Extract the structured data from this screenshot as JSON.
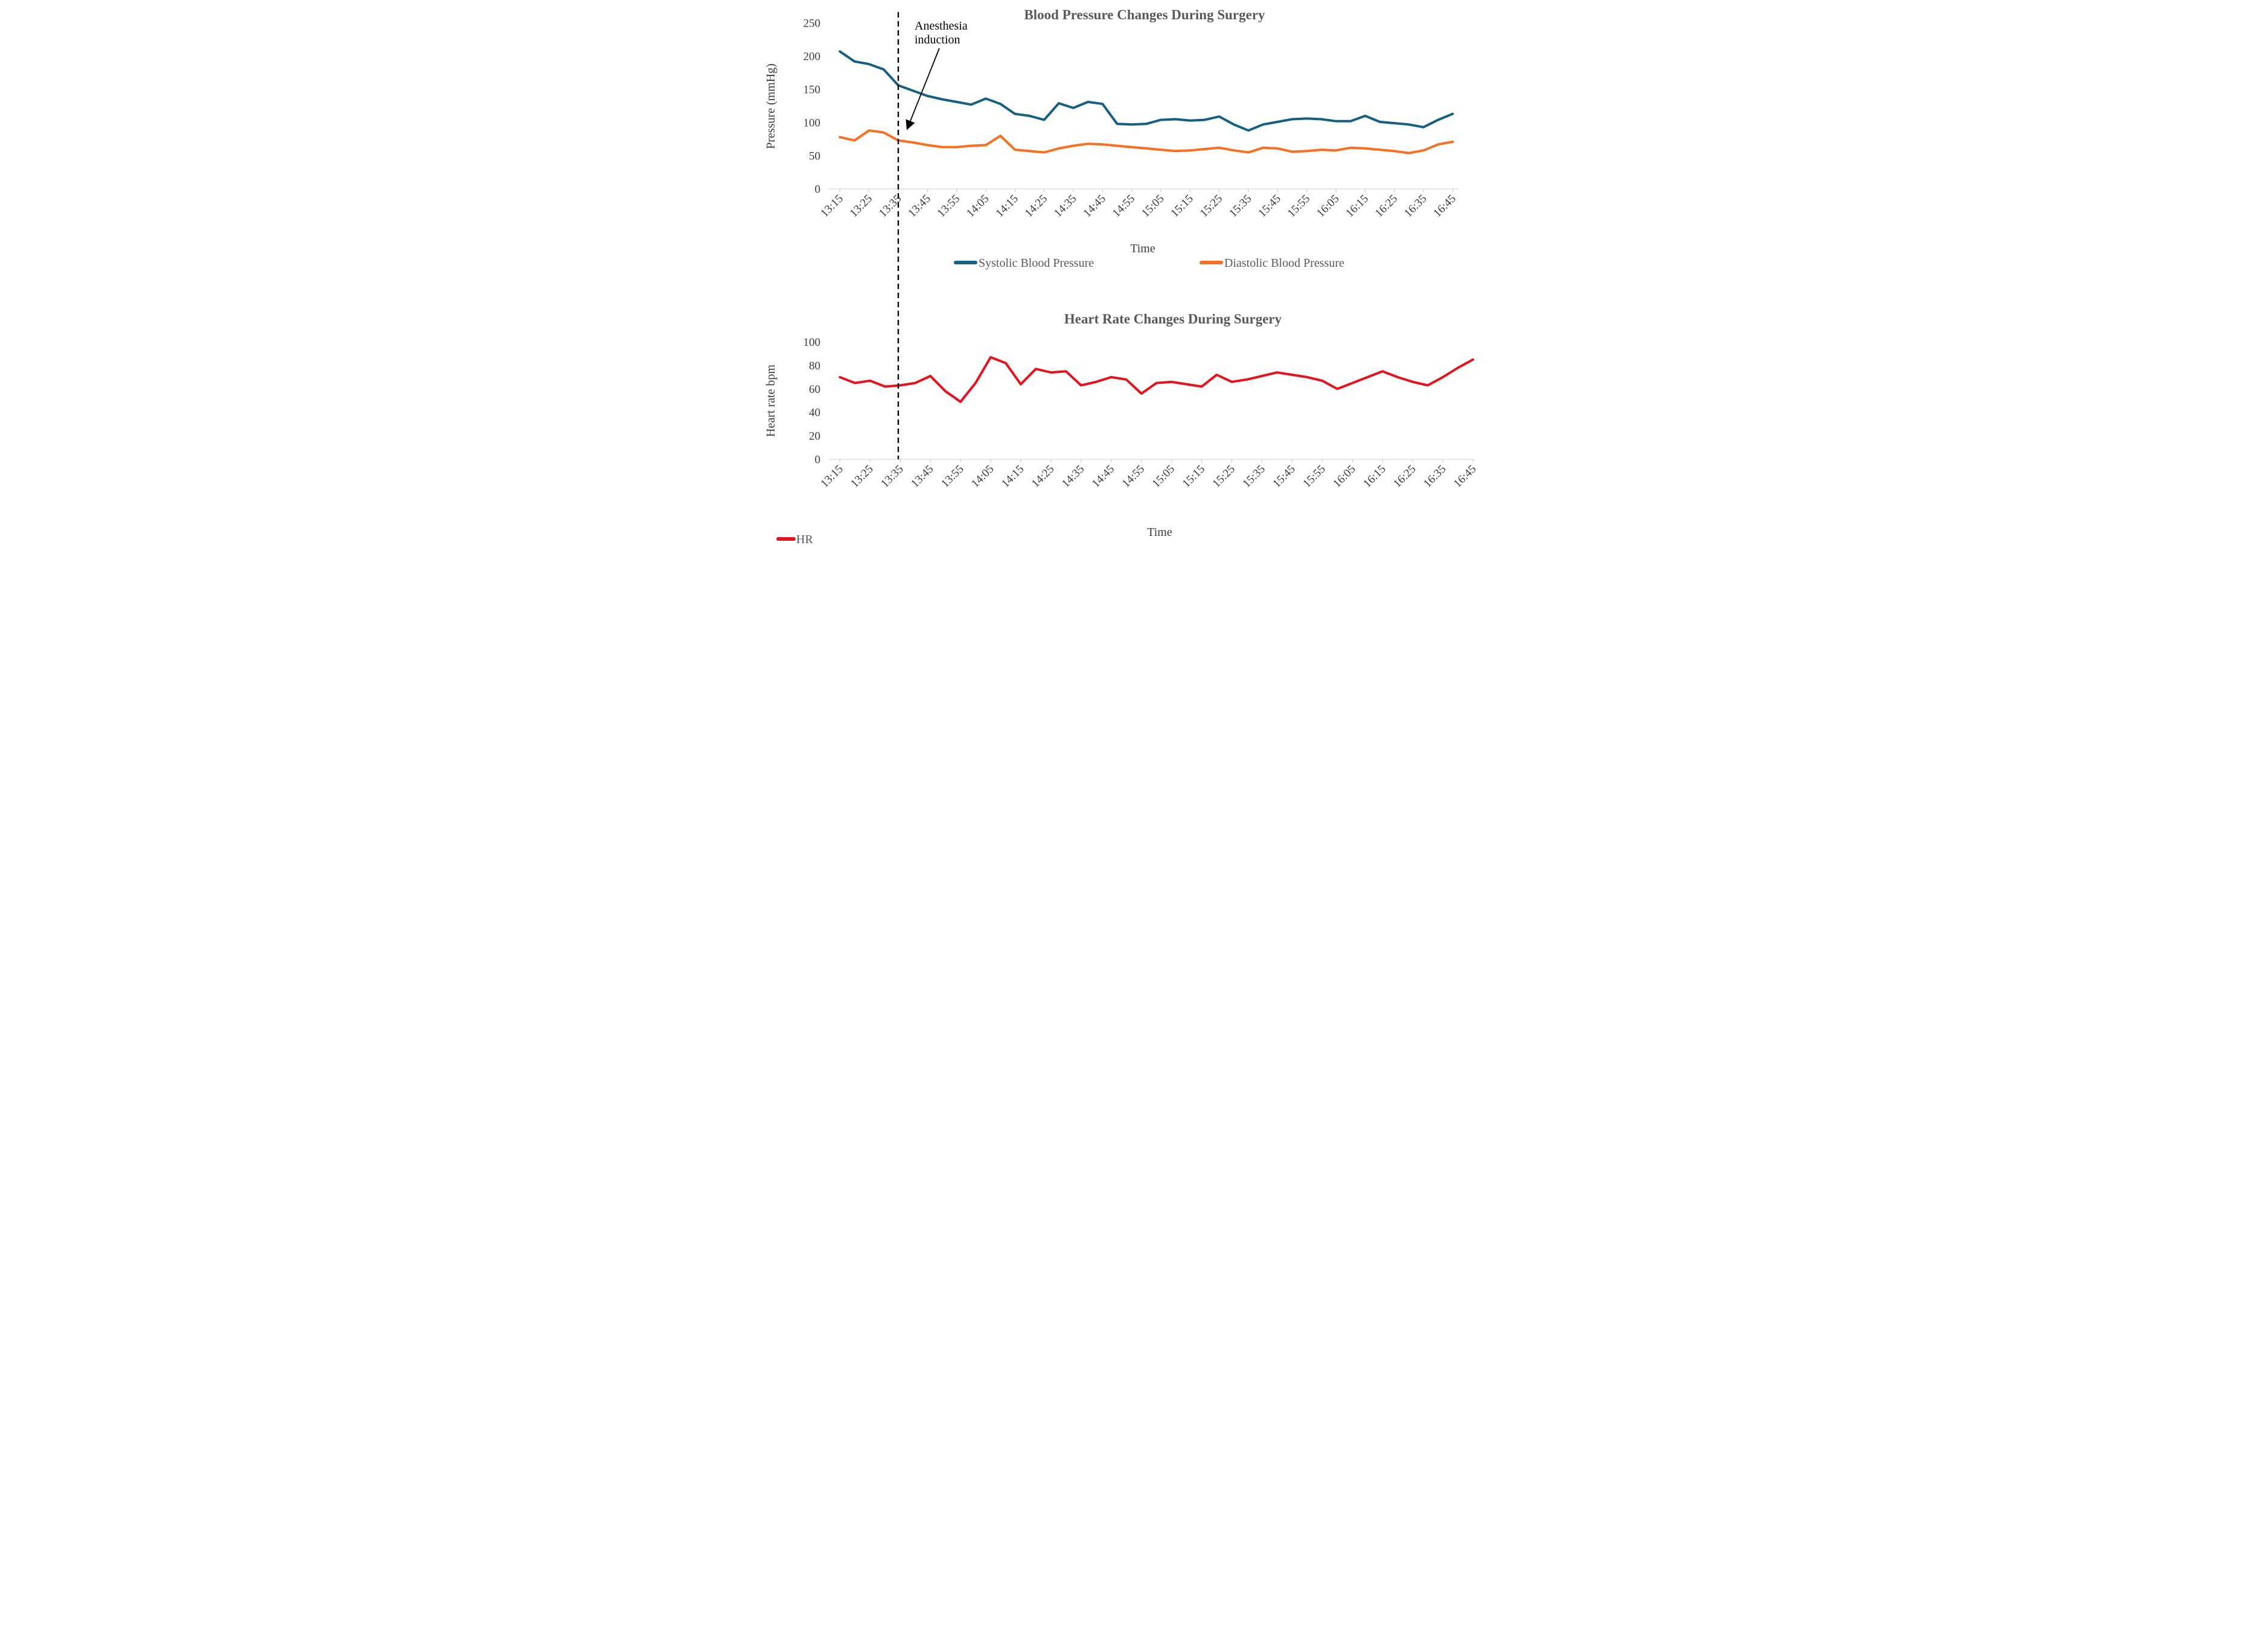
{
  "page": {
    "background": "#ffffff"
  },
  "colors": {
    "systolic": "#156082",
    "diastolic": "#F8701F",
    "heart_rate": "#E5141C",
    "title_text": "#595959",
    "axis_text": "#3b3b3b",
    "axis_line": "#d9d9d9",
    "tick_mark": "#bfbfbf",
    "annotation_line": "#000000"
  },
  "annotation": {
    "lines": [
      "Anesthesia",
      "induction"
    ],
    "full_text": "Anesthesia induction",
    "points_to_time": "13:35",
    "marker": "dashed-vertical-line-with-arrow"
  },
  "chart_data": [
    {
      "id": "blood-pressure",
      "type": "line",
      "title": "Blood Pressure Changes During Surgery",
      "xlabel": "Time",
      "ylabel": "Pressure (mmHg)",
      "ylim": [
        0,
        250
      ],
      "yticks": [
        0,
        50,
        100,
        150,
        200,
        250
      ],
      "x_labels_shown": "every second point (10-minute interval)",
      "grid": "off",
      "legend_position": "bottom-center",
      "categories": [
        "13:15",
        "13:20",
        "13:25",
        "13:30",
        "13:35",
        "13:40",
        "13:45",
        "13:50",
        "13:55",
        "14:00",
        "14:05",
        "14:10",
        "14:15",
        "14:20",
        "14:25",
        "14:30",
        "14:35",
        "14:40",
        "14:45",
        "14:50",
        "14:55",
        "15:00",
        "15:05",
        "15:10",
        "15:15",
        "15:20",
        "15:25",
        "15:30",
        "15:35",
        "15:40",
        "15:45",
        "15:50",
        "15:55",
        "16:00",
        "16:05",
        "16:10",
        "16:15",
        "16:20",
        "16:25",
        "16:30",
        "16:35",
        "16:40",
        "16:45"
      ],
      "series": [
        {
          "name": "Systolic Blood Pressure",
          "color": "#156082",
          "values": [
            207,
            192,
            188,
            180,
            156,
            148,
            140,
            135,
            131,
            127,
            136,
            128,
            113,
            110,
            104,
            129,
            122,
            131,
            128,
            98,
            97,
            98,
            104,
            105,
            103,
            104,
            109,
            97,
            88,
            97,
            101,
            105,
            106,
            105,
            102,
            102,
            110,
            101,
            99,
            97,
            93,
            104,
            113
          ]
        },
        {
          "name": "Diastolic Blood Pressure",
          "color": "#F8701F",
          "values": [
            78,
            73,
            88,
            85,
            73,
            70,
            66,
            63,
            63,
            65,
            66,
            80,
            59,
            57,
            55,
            61,
            65,
            68,
            67,
            65,
            63,
            61,
            59,
            57,
            58,
            60,
            62,
            58,
            55,
            62,
            61,
            56,
            57,
            59,
            58,
            62,
            61,
            59,
            57,
            54,
            58,
            67,
            71
          ]
        }
      ]
    },
    {
      "id": "heart-rate",
      "type": "line",
      "title": "Heart Rate Changes During Surgery",
      "xlabel": "Time",
      "ylabel": "Heart rate bpm",
      "ylim": [
        0,
        100
      ],
      "yticks": [
        0,
        20,
        40,
        60,
        80,
        100
      ],
      "x_labels_shown": "every second point (10-minute interval)",
      "grid": "off",
      "legend_position": "bottom-left",
      "categories": [
        "13:15",
        "13:20",
        "13:25",
        "13:30",
        "13:35",
        "13:40",
        "13:45",
        "13:50",
        "13:55",
        "14:00",
        "14:05",
        "14:10",
        "14:15",
        "14:20",
        "14:25",
        "14:30",
        "14:35",
        "14:40",
        "14:45",
        "14:50",
        "14:55",
        "15:00",
        "15:05",
        "15:10",
        "15:15",
        "15:20",
        "15:25",
        "15:30",
        "15:35",
        "15:40",
        "15:45",
        "15:50",
        "15:55",
        "16:00",
        "16:05",
        "16:10",
        "16:15",
        "16:20",
        "16:25",
        "16:30",
        "16:35",
        "16:40",
        "16:45"
      ],
      "series": [
        {
          "name": "HR",
          "color": "#E5141C",
          "values": [
            70,
            65,
            67,
            62,
            63,
            65,
            71,
            58,
            49,
            65,
            87,
            82,
            64,
            77,
            74,
            75,
            63,
            66,
            70,
            68,
            56,
            65,
            66,
            64,
            62,
            72,
            66,
            68,
            71,
            74,
            72,
            70,
            67,
            60,
            65,
            70,
            75,
            70,
            66,
            63,
            70,
            78,
            85
          ]
        }
      ]
    }
  ]
}
